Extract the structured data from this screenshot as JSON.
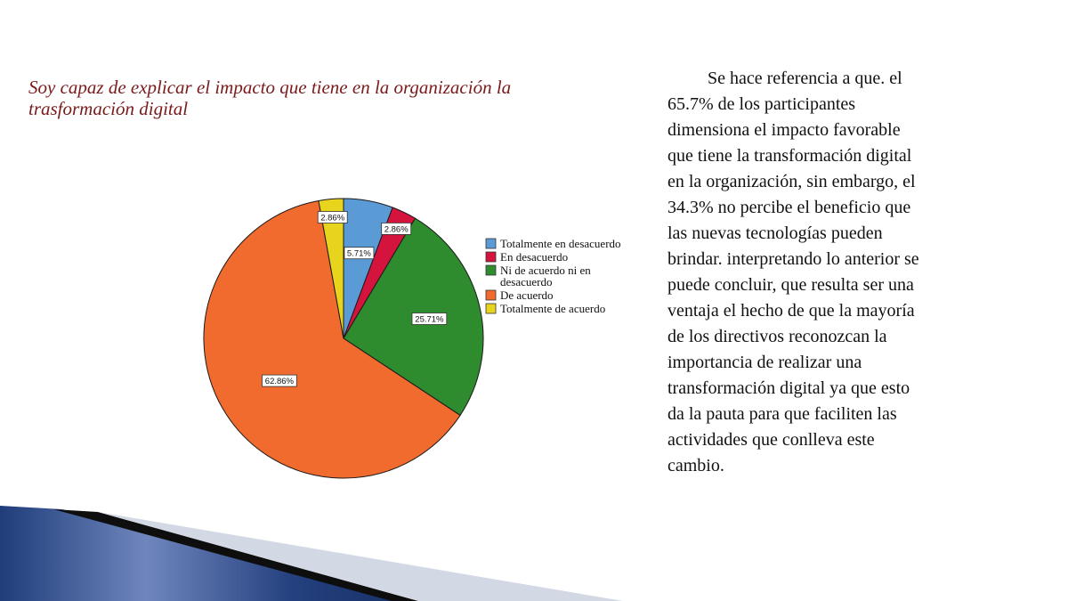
{
  "slide": {
    "title_lines": [
      "Soy capaz de explicar el impacto que tiene en la organización la",
      "trasformación digital"
    ],
    "body_lines": [
      "Se  hace referencia a que. el",
      "65.7% de los participantes",
      "dimensiona el impacto favorable",
      "que tiene la transformación digital",
      "en la organización, sin embargo, el",
      "34.3% no percibe el beneficio que",
      "las nuevas tecnologías pueden",
      "brindar. interpretando lo anterior se",
      "puede concluir, que resulta ser una",
      "ventaja el hecho de que la mayoría",
      "de los directivos reconozcan la",
      "importancia de realizar una",
      "transformación digital ya que esto",
      "da la pauta para que faciliten las",
      "actividades que conlleva este",
      "cambio."
    ]
  },
  "chart_data": {
    "type": "pie",
    "title": "",
    "legend_position": "right",
    "slices": [
      {
        "name": "Totalmente en desacuerdo",
        "value": 5.71,
        "label": "5.71%",
        "color": "#5b9bd5"
      },
      {
        "name": "En desacuerdo",
        "value": 2.86,
        "label": "2.86%",
        "color": "#d4143c"
      },
      {
        "name": "Ni de acuerdo ni en desacuerdo",
        "value": 25.71,
        "label": "25.71%",
        "color": "#2e8b2e"
      },
      {
        "name": "De acuerdo",
        "value": 62.86,
        "label": "62.86%",
        "color": "#f26b2e"
      },
      {
        "name": "Totalmente de acuerdo",
        "value": 2.86,
        "label": "2.86%",
        "color": "#e8d41c"
      }
    ],
    "legend_lines": [
      [
        "Totalmente en desacuerdo"
      ],
      [
        "En desacuerdo"
      ],
      [
        "Ni de acuerdo ni en",
        "desacuerdo"
      ],
      [
        "De acuerdo"
      ],
      [
        "Totalmente de acuerdo"
      ]
    ]
  }
}
